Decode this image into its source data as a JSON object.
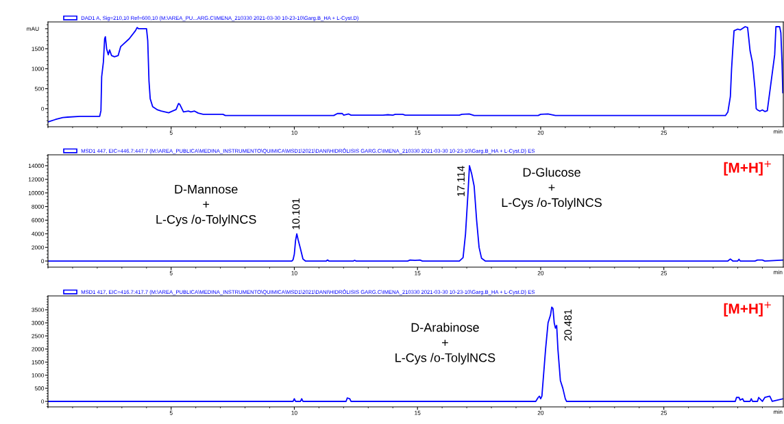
{
  "chart_data": [
    {
      "type": "line",
      "xlabel": "min",
      "ylabel": "mAU",
      "legend": "top left",
      "grid": false,
      "marker": "none",
      "line_style": "solid",
      "xlim": [
        0,
        29.85
      ],
      "xticks": [
        5,
        10,
        15,
        20,
        25
      ],
      "ylim": [
        -450,
        2170
      ],
      "yticks": [
        0,
        500,
        1000,
        1500,
        {
          "value": 2000,
          "label": null
        }
      ],
      "series": [
        {
          "name": "DAD1 A, Sig=210,10 Ref=600,10 (M:\\AREA_PU...ARG.C\\IMENA_210330 2021-03-30 10-23-10\\Garg.B_HA + L-Cyst.D)",
          "color": "#0000ff",
          "x": [
            0,
            0.3,
            0.6,
            0.8,
            1.3,
            2.1,
            2.15,
            2.18,
            2.25,
            2.3,
            2.33,
            2.38,
            2.45,
            2.5,
            2.58,
            2.7,
            2.85,
            2.95,
            3.3,
            3.55,
            3.62,
            3.68,
            4.0,
            4.05,
            4.1,
            4.15,
            4.25,
            4.45,
            4.6,
            4.9,
            5.2,
            5.3,
            5.35,
            5.5,
            5.7,
            5.8,
            5.95,
            6.1,
            6.3,
            7.1,
            7.2,
            11.6,
            11.75,
            11.95,
            12.0,
            12.2,
            12.3,
            13.6,
            13.8,
            14.0,
            14.1,
            14.4,
            14.5,
            16.7,
            16.8,
            17.1,
            17.3,
            19.9,
            20.0,
            20.3,
            20.6,
            27.5,
            27.6,
            27.7,
            27.75,
            27.8,
            27.85,
            28.0,
            28.1,
            28.3,
            28.4,
            28.45,
            28.5,
            28.6,
            28.7,
            28.75,
            28.8,
            28.9,
            29.0,
            29.1,
            29.2,
            29.5,
            29.55,
            29.7,
            29.75,
            29.8,
            29.83
          ],
          "values": [
            -330,
            -270,
            -220,
            -210,
            -190,
            -190,
            -50,
            800,
            1170,
            1750,
            1800,
            1500,
            1350,
            1470,
            1330,
            1300,
            1330,
            1550,
            1750,
            1950,
            2030,
            2000,
            2000,
            1700,
            700,
            250,
            50,
            -30,
            -60,
            -100,
            -20,
            130,
            110,
            -80,
            -60,
            -80,
            -60,
            -110,
            -140,
            -140,
            -170,
            -170,
            -120,
            -120,
            -160,
            -130,
            -160,
            -160,
            -150,
            -160,
            -140,
            -140,
            -160,
            -160,
            -140,
            -130,
            -170,
            -170,
            -140,
            -130,
            -170,
            -170,
            -80,
            300,
            1000,
            1500,
            1950,
            1990,
            1970,
            2050,
            2030,
            1750,
            1450,
            1150,
            500,
            0,
            -30,
            -60,
            -30,
            -70,
            -50,
            1350,
            2050,
            2050,
            1900,
            1100,
            400
          ]
        }
      ]
    },
    {
      "type": "line",
      "xlabel": "min",
      "legend": "top left",
      "grid": false,
      "marker": "none",
      "line_style": "solid",
      "xlim": [
        0,
        29.85
      ],
      "xticks": [
        5,
        10,
        15,
        20,
        25
      ],
      "ylim": [
        -900,
        15600
      ],
      "yticks": [
        0,
        2000,
        4000,
        6000,
        8000,
        10000,
        12000,
        14000
      ],
      "annotations": [
        "D-Mannose\n+\nL-Cys /o-TolylNCS",
        {
          "text": "10.101",
          "x": 10.101,
          "y": 4000
        },
        {
          "text": "17.114",
          "x": 17.114,
          "y": 14000
        },
        "D-Glucose\n+\nL-Cys /o-TolylNCS",
        "[M+H]$^{+}$"
      ],
      "series": [
        {
          "name": "MSD1 447, EIC=446.7:447.7 (M:\\AREA_PUBLICA\\MEDINA_INSTRUMENTO\\QUIMICA\\MSD1\\2021\\DANI\\HIDRÓLISIS GARG.C\\IMENA_210330 2021-03-30 10-23-10\\Garg.B_HA + L-Cyst.D) ES",
          "color": "#0000ff",
          "x": [
            0,
            9.9,
            9.95,
            10.0,
            10.05,
            10.1,
            10.15,
            10.25,
            10.35,
            10.45,
            11.3,
            11.35,
            11.4,
            12.4,
            12.45,
            12.5,
            14.6,
            14.7,
            14.9,
            15.1,
            15.2,
            16.7,
            16.85,
            16.95,
            17.05,
            17.11,
            17.2,
            17.3,
            17.4,
            17.5,
            17.6,
            17.75,
            18.4,
            27.6,
            27.7,
            27.8,
            28.0,
            28.05,
            28.1,
            28.7,
            28.8,
            29.0,
            29.1,
            29.85
          ],
          "values": [
            0,
            0,
            200,
            1000,
            3000,
            4000,
            3200,
            1800,
            300,
            0,
            0,
            150,
            0,
            0,
            100,
            0,
            0,
            150,
            100,
            150,
            0,
            0,
            500,
            4000,
            10000,
            14000,
            12800,
            11000,
            6000,
            2000,
            400,
            0,
            0,
            0,
            300,
            0,
            0,
            250,
            0,
            0,
            150,
            150,
            0,
            150
          ]
        }
      ]
    },
    {
      "type": "line",
      "xlabel": "min",
      "legend": "top left",
      "grid": false,
      "marker": "none",
      "line_style": "solid",
      "xlim": [
        0,
        29.85
      ],
      "xticks": [
        5,
        10,
        15,
        20,
        25
      ],
      "ylim": [
        -210,
        4030
      ],
      "yticks": [
        0,
        500,
        1000,
        1500,
        2000,
        2500,
        3000,
        3500
      ],
      "annotations": [
        {
          "text": "20.481",
          "x": 20.481,
          "y": 3600
        },
        "D-Arabinose\n+\nL-Cys /o-TolylNCS",
        "[M+H]$^{+}$"
      ],
      "series": [
        {
          "name": "MSD1 417, EIC=416.7:417.7 (M:\\AREA_PUBLICA\\MEDINA_INSTRUMENTO\\QUIMICA\\MSD1\\2021\\DANI\\HIDRÓLISIS GARG.C\\IMENA_210330 2021-03-30 10-23-10\\Garg.B_HA + L-Cyst.D) ES",
          "color": "#0000ff",
          "x": [
            0,
            9.95,
            10.0,
            10.05,
            10.25,
            10.3,
            10.35,
            12.1,
            12.15,
            12.25,
            12.3,
            19.8,
            19.9,
            19.95,
            20.0,
            20.05,
            20.2,
            20.3,
            20.4,
            20.45,
            20.5,
            20.55,
            20.6,
            20.65,
            20.7,
            20.8,
            20.9,
            21.0,
            21.05,
            27.9,
            27.95,
            28.05,
            28.1,
            28.2,
            28.25,
            28.5,
            28.55,
            28.6,
            28.8,
            28.85,
            29.0,
            29.1,
            29.3,
            29.4,
            29.85
          ],
          "values": [
            0,
            0,
            100,
            0,
            0,
            100,
            0,
            0,
            130,
            100,
            0,
            0,
            150,
            200,
            100,
            200,
            2000,
            3000,
            3300,
            3600,
            3550,
            3000,
            2800,
            2900,
            2000,
            800,
            500,
            100,
            0,
            0,
            150,
            150,
            50,
            100,
            0,
            0,
            100,
            0,
            0,
            150,
            0,
            150,
            200,
            0,
            100
          ]
        }
      ]
    }
  ]
}
